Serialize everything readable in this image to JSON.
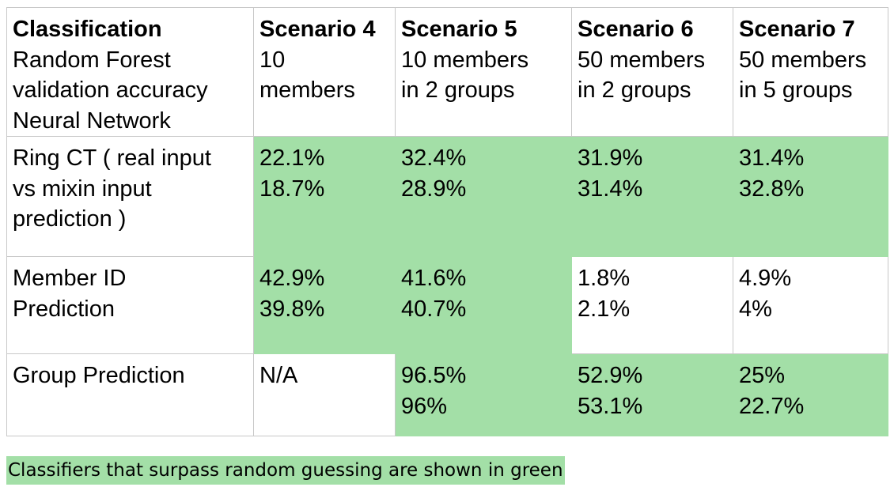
{
  "table": {
    "header": {
      "first_cell": {
        "title": "Classification",
        "lines": [
          "Random Forest",
          "validation accuracy",
          "Neural Network"
        ]
      },
      "columns": [
        {
          "title": "Scenario 4",
          "lines": [
            "10",
            "members"
          ]
        },
        {
          "title": "Scenario 5",
          "lines": [
            "10 members",
            "in 2 groups"
          ]
        },
        {
          "title": "Scenario 6",
          "lines": [
            "50 members",
            "in 2 groups"
          ]
        },
        {
          "title": "Scenario 7",
          "lines": [
            "50 members",
            "in 5 groups"
          ]
        }
      ]
    },
    "rows": [
      {
        "label_lines": [
          "Ring CT ( real input",
          "vs mixin input",
          "prediction )"
        ],
        "cells": [
          {
            "random_forest": "22.1%",
            "neural_network": "18.7%",
            "highlighted": true
          },
          {
            "random_forest": "32.4%",
            "neural_network": "28.9%",
            "highlighted": true
          },
          {
            "random_forest": "31.9%",
            "neural_network": "31.4%",
            "highlighted": true
          },
          {
            "random_forest": "31.4%",
            "neural_network": "32.8%",
            "highlighted": true
          }
        ]
      },
      {
        "label_lines": [
          "Member ID",
          "Prediction"
        ],
        "cells": [
          {
            "random_forest": "42.9%",
            "neural_network": "39.8%",
            "highlighted": true
          },
          {
            "random_forest": "41.6%",
            "neural_network": "40.7%",
            "highlighted": true
          },
          {
            "random_forest": "1.8%",
            "neural_network": "2.1%",
            "highlighted": false
          },
          {
            "random_forest": "4.9%",
            "neural_network": "4%",
            "highlighted": false
          }
        ]
      },
      {
        "label_lines": [
          "Group Prediction"
        ],
        "cells": [
          {
            "random_forest": "N/A",
            "neural_network": "",
            "highlighted": false
          },
          {
            "random_forest": "96.5%",
            "neural_network": "96%",
            "highlighted": true
          },
          {
            "random_forest": "52.9%",
            "neural_network": "53.1%",
            "highlighted": true
          },
          {
            "random_forest": "25%",
            "neural_network": "22.7%",
            "highlighted": true
          }
        ]
      }
    ]
  },
  "legend_note": "Classifiers that surpass random guessing are shown in green",
  "colors": {
    "highlight": "#a3dfa7",
    "border": "#c8c8c8",
    "text": "#000000",
    "background": "#ffffff"
  }
}
